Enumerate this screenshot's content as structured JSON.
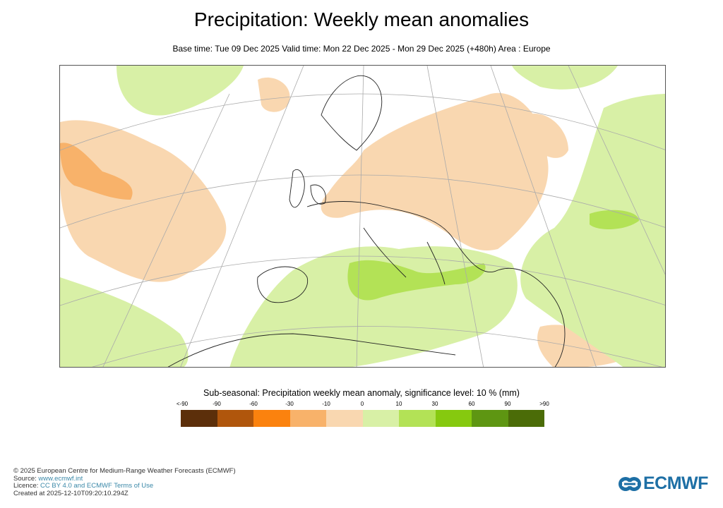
{
  "header": {
    "title": "Precipitation: Weekly mean anomalies",
    "subtitle": "Base time: Tue 09 Dec 2025 Valid time: Mon 22 Dec 2025 - Mon 29 Dec 2025 (+480h) Area : Europe"
  },
  "chart_data": {
    "type": "heatmap",
    "title": "Precipitation: Weekly mean anomalies",
    "area": "Europe",
    "legend_title": "Sub-seasonal: Precipitation weekly mean anomaly, significance level: 10 % (mm)",
    "tick_labels": [
      "<-90",
      "-90",
      "-60",
      "-30",
      "-10",
      "0",
      "10",
      "30",
      "60",
      "90",
      ">90"
    ],
    "bins": [
      {
        "range": "<-90",
        "color": "#5c2f0a"
      },
      {
        "range": "-90 to -60",
        "color": "#b0560c"
      },
      {
        "range": "-60 to -30",
        "color": "#fb820e"
      },
      {
        "range": "-30 to -10",
        "color": "#f8b26a"
      },
      {
        "range": "-10 to 0",
        "color": "#f9d7b0"
      },
      {
        "range": "0 to 10",
        "color": "#d8f0a6"
      },
      {
        "range": "10 to 30",
        "color": "#b3e256"
      },
      {
        "range": "30 to 60",
        "color": "#86c90f"
      },
      {
        "range": "60 to 90",
        "color": "#5e9612"
      },
      {
        "range": ">90",
        "color": "#4b6c08"
      }
    ]
  },
  "footer": {
    "copyright": "© 2025 European Centre for Medium-Range Weather Forecasts (ECMWF)",
    "source_label": "Source: ",
    "source_link": "www.ecmwf.int",
    "licence_label": "Licence: ",
    "licence_link": "CC BY 4.0 and ECMWF Terms of Use",
    "created": "Created at 2025-12-10T09:20:10.294Z"
  },
  "logo": {
    "text": "ECMWF"
  }
}
